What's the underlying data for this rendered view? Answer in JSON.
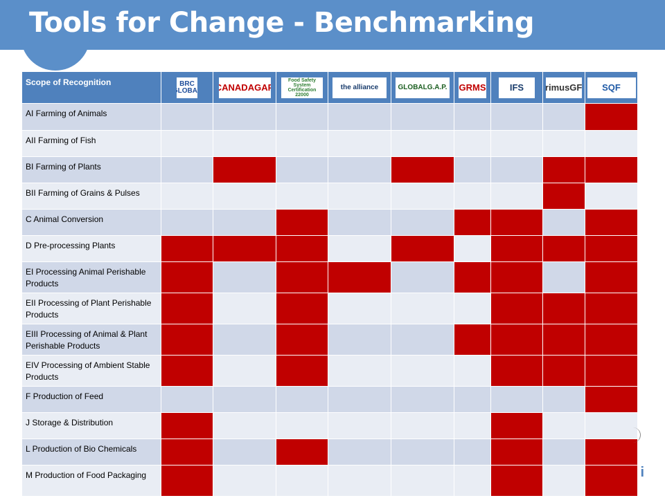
{
  "title": "Tools for Change - Benchmarking",
  "table": {
    "header": "Scope of Recognition",
    "logos": [
      {
        "name": "brc-global-logo",
        "text": "BRC GLOBAL",
        "color": "#1f4e9b"
      },
      {
        "name": "canadagap-logo",
        "text": "CANADAGAP",
        "color": "#c00000"
      },
      {
        "name": "fssc-22000-logo",
        "text": "Food Safety System Certification 22000",
        "color": "#2e7d32"
      },
      {
        "name": "global-aquaculture-alliance-logo",
        "text": "the alliance",
        "color": "#1a3d6d"
      },
      {
        "name": "globalgap-logo",
        "text": "GLOBALG.A.P.",
        "color": "#1b5e20"
      },
      {
        "name": "grms-logo",
        "text": "GRMS",
        "color": "#c00000"
      },
      {
        "name": "ifs-logo",
        "text": "IFS",
        "color": "#1a3d6d"
      },
      {
        "name": "primus-gfs-logo",
        "text": "primusGFS",
        "color": "#333333"
      },
      {
        "name": "sqf-logo",
        "text": "SQF",
        "color": "#1f5aa6"
      }
    ],
    "rows": [
      {
        "label": "AI  Farming of  Animals",
        "marks": [
          0,
          0,
          0,
          0,
          0,
          0,
          0,
          0,
          1
        ]
      },
      {
        "label": "AII Farming of Fish",
        "marks": [
          0,
          0,
          0,
          0,
          0,
          0,
          0,
          0,
          0
        ]
      },
      {
        "label": "BI Farming of  Plants",
        "marks": [
          0,
          1,
          0,
          0,
          1,
          0,
          0,
          1,
          1
        ]
      },
      {
        "label": "BII Farming of Grains  & Pulses",
        "marks": [
          0,
          0,
          0,
          0,
          0,
          0,
          0,
          1,
          0
        ]
      },
      {
        "label": "C Animal  Conversion",
        "marks": [
          0,
          0,
          1,
          0,
          0,
          1,
          1,
          0,
          1
        ]
      },
      {
        "label": "D Pre-processing Plants",
        "marks": [
          1,
          1,
          1,
          0,
          1,
          0,
          1,
          1,
          1
        ]
      },
      {
        "label": "EI Processing Animal Perishable Products",
        "marks": [
          1,
          0,
          1,
          1,
          0,
          1,
          1,
          0,
          1
        ]
      },
      {
        "label": "EII Processing of Plant Perishable Products",
        "marks": [
          1,
          0,
          1,
          0,
          0,
          0,
          1,
          1,
          1
        ]
      },
      {
        "label": "EIII Processing of Animal & Plant Perishable Products",
        "marks": [
          1,
          0,
          1,
          0,
          0,
          1,
          1,
          1,
          1
        ]
      },
      {
        "label": "EIV Processing of Ambient Stable Products",
        "marks": [
          1,
          0,
          1,
          0,
          0,
          0,
          1,
          1,
          1
        ]
      },
      {
        "label": "F   Production of Feed",
        "marks": [
          0,
          0,
          0,
          0,
          0,
          0,
          0,
          0,
          1
        ]
      },
      {
        "label": "J  Storage & Distribution",
        "marks": [
          1,
          0,
          0,
          0,
          0,
          0,
          1,
          0,
          0
        ]
      },
      {
        "label": "L Production of  Bio  Chemicals",
        "marks": [
          1,
          0,
          1,
          0,
          0,
          0,
          1,
          0,
          1
        ]
      },
      {
        "label": "M Production of Food Packaging",
        "marks": [
          1,
          0,
          0,
          0,
          0,
          0,
          1,
          0,
          1
        ]
      }
    ]
  },
  "colors": {
    "accent": "#5b8fc9",
    "header": "#4f81bd",
    "mark": "#c00000",
    "row_dark": "#d0d8e8",
    "row_light": "#e9edf4"
  }
}
